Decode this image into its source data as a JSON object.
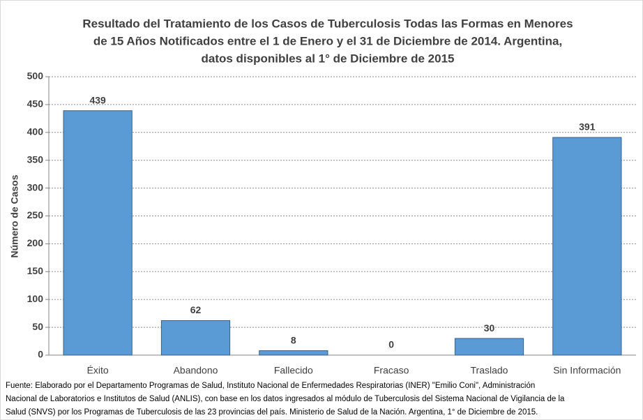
{
  "chart_data": {
    "type": "bar",
    "title": [
      "Resultado del Tratamiento de los Casos de Tuberculosis Todas las Formas en Menores",
      "de 15 Años Notificados entre el 1 de Enero y el 31 de Diciembre de 2014. Argentina,",
      "datos disponibles al 1° de Diciembre de 2015"
    ],
    "y_label": "Número de Casos",
    "categories": [
      "Éxito",
      "Abandono",
      "Fallecido",
      "Fracaso",
      "Traslado",
      "Sin Información"
    ],
    "values": [
      439,
      62,
      8,
      0,
      30,
      391
    ],
    "color": "#5b9bd5",
    "ylim": [
      0,
      500
    ],
    "yticks": [
      0,
      50,
      100,
      150,
      200,
      250,
      300,
      350,
      400,
      450,
      500
    ],
    "grid": true,
    "note": [
      "Fuente: Elaborado por el Departamento Programas de Salud, Instituto Nacional de Enfermedades Respiratorias (INER) \"Emilio Coni\", Administración",
      "Nacional de Laboratorios e Institutos de Salud (ANLIS), con base en los datos ingresados al módulo de Tuberculosis del Sistema Nacional de Vigilancia de la",
      "Salud (SNVS) por los Programas de Tuberculosis de las 23 provincias del país. Ministerio de Salud de la Nación. Argentina,  1° de Diciembre de 2015."
    ]
  }
}
